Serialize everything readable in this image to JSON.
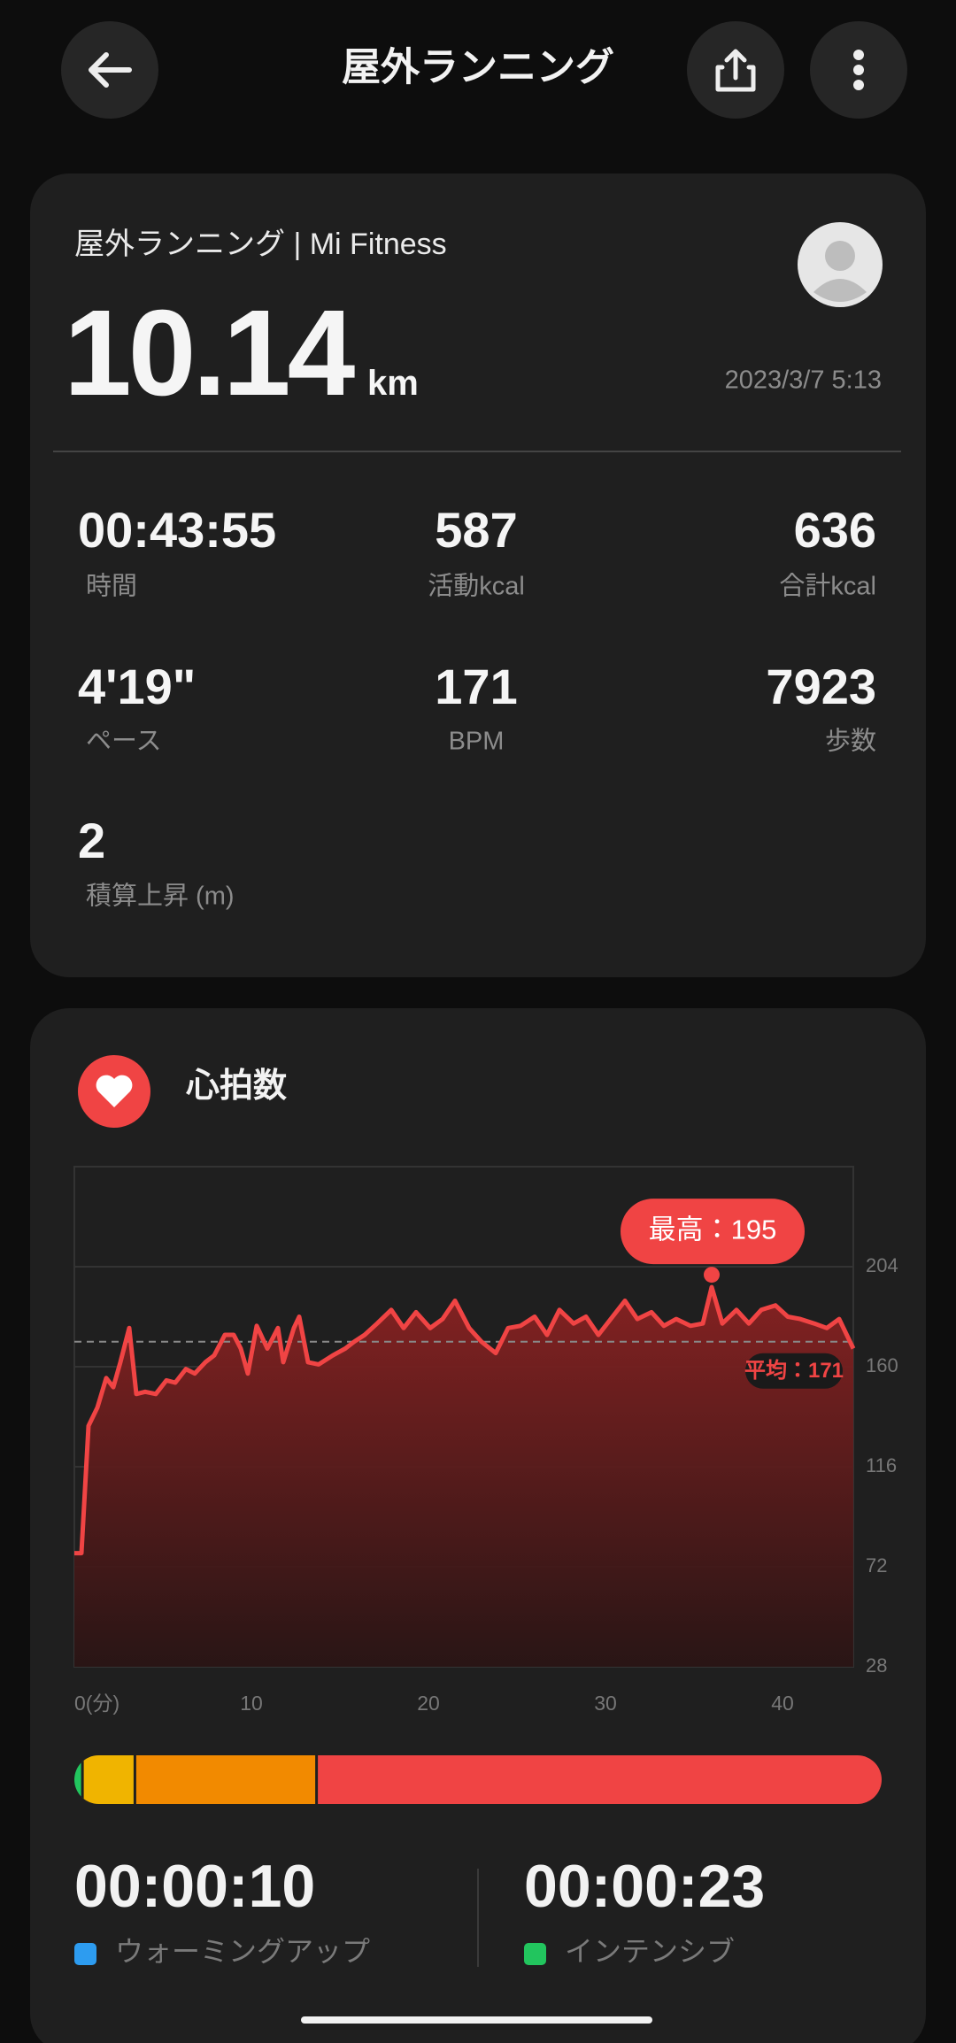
{
  "header": {
    "title": "屋外ランニング"
  },
  "summary": {
    "source": "屋外ランニング | Mi Fitness",
    "distance": "10.14",
    "distance_unit": "km",
    "date": "2023/3/7 5:13"
  },
  "stats": [
    {
      "value": "00:43:55",
      "label": "時間"
    },
    {
      "value": "587",
      "label": "活動kcal"
    },
    {
      "value": "636",
      "label": "合計kcal"
    },
    {
      "value": "4'19\"",
      "label": "ペース"
    },
    {
      "value": "171",
      "label": "BPM"
    },
    {
      "value": "7923",
      "label": "歩数"
    },
    {
      "value": "2",
      "label": "積算上昇 (m)"
    }
  ],
  "chart_data": {
    "type": "line",
    "title": "心拍数",
    "color": "#f04444",
    "x": [
      0,
      0.4,
      0.8,
      1.3,
      1.8,
      2.2,
      2.6,
      3.1,
      3.5,
      4.0,
      4.6,
      5.2,
      5.7,
      6.3,
      6.8,
      7.4,
      7.9,
      8.5,
      9.0,
      9.4,
      9.8,
      10.3,
      10.9,
      11.5,
      11.8,
      12.4,
      12.7,
      13.2,
      13.8,
      14.6,
      15.3,
      15.8,
      16.4,
      17.1,
      17.9,
      18.6,
      19.3,
      20.1,
      20.8,
      21.5,
      22.3,
      23.0,
      23.8,
      24.5,
      25.2,
      26.0,
      26.7,
      27.4,
      28.2,
      28.9,
      29.6,
      30.4,
      31.1,
      31.8,
      32.6,
      33.3,
      34.0,
      34.8,
      35.5,
      36.0,
      36.6,
      37.4,
      38.1,
      38.8,
      39.6,
      40.3,
      41.0,
      41.8,
      42.5,
      43.2,
      44.0
    ],
    "values": [
      78,
      78,
      134,
      142,
      155,
      151,
      162,
      177,
      148,
      149,
      148,
      154,
      153,
      159,
      157,
      162,
      165,
      174,
      174,
      168,
      157,
      178,
      168,
      177,
      162,
      177,
      182,
      162,
      161,
      165,
      168,
      171,
      174,
      179,
      185,
      177,
      184,
      177,
      181,
      189,
      177,
      171,
      166,
      177,
      178,
      182,
      174,
      185,
      179,
      182,
      174,
      182,
      189,
      181,
      184,
      178,
      181,
      178,
      179,
      195,
      179,
      185,
      179,
      185,
      187,
      182,
      181,
      179,
      177,
      181,
      168
    ],
    "xlim": [
      0,
      44
    ],
    "xticks": [
      {
        "value": 0,
        "label": "0(分)"
      },
      10,
      20,
      30,
      40
    ],
    "ylim": [
      28,
      248
    ],
    "yticks": [
      28,
      72,
      116,
      160,
      204
    ],
    "grid": true,
    "average": 171,
    "average_label": "平均：171",
    "max": 195,
    "max_label": "最高：195"
  },
  "zones": [
    {
      "color": "#22c55e",
      "share": 1
    },
    {
      "color": "#f0b400",
      "share": 6.5
    },
    {
      "color": "#f28a00",
      "share": 22.5
    },
    {
      "color": "#f04444",
      "share": 70
    }
  ],
  "zone_times": [
    {
      "value": "00:00:10",
      "label": "ウォーミングアップ",
      "color": "#2d9cf0"
    },
    {
      "value": "00:00:23",
      "label": "インテンシブ",
      "color": "#22c55e"
    }
  ]
}
